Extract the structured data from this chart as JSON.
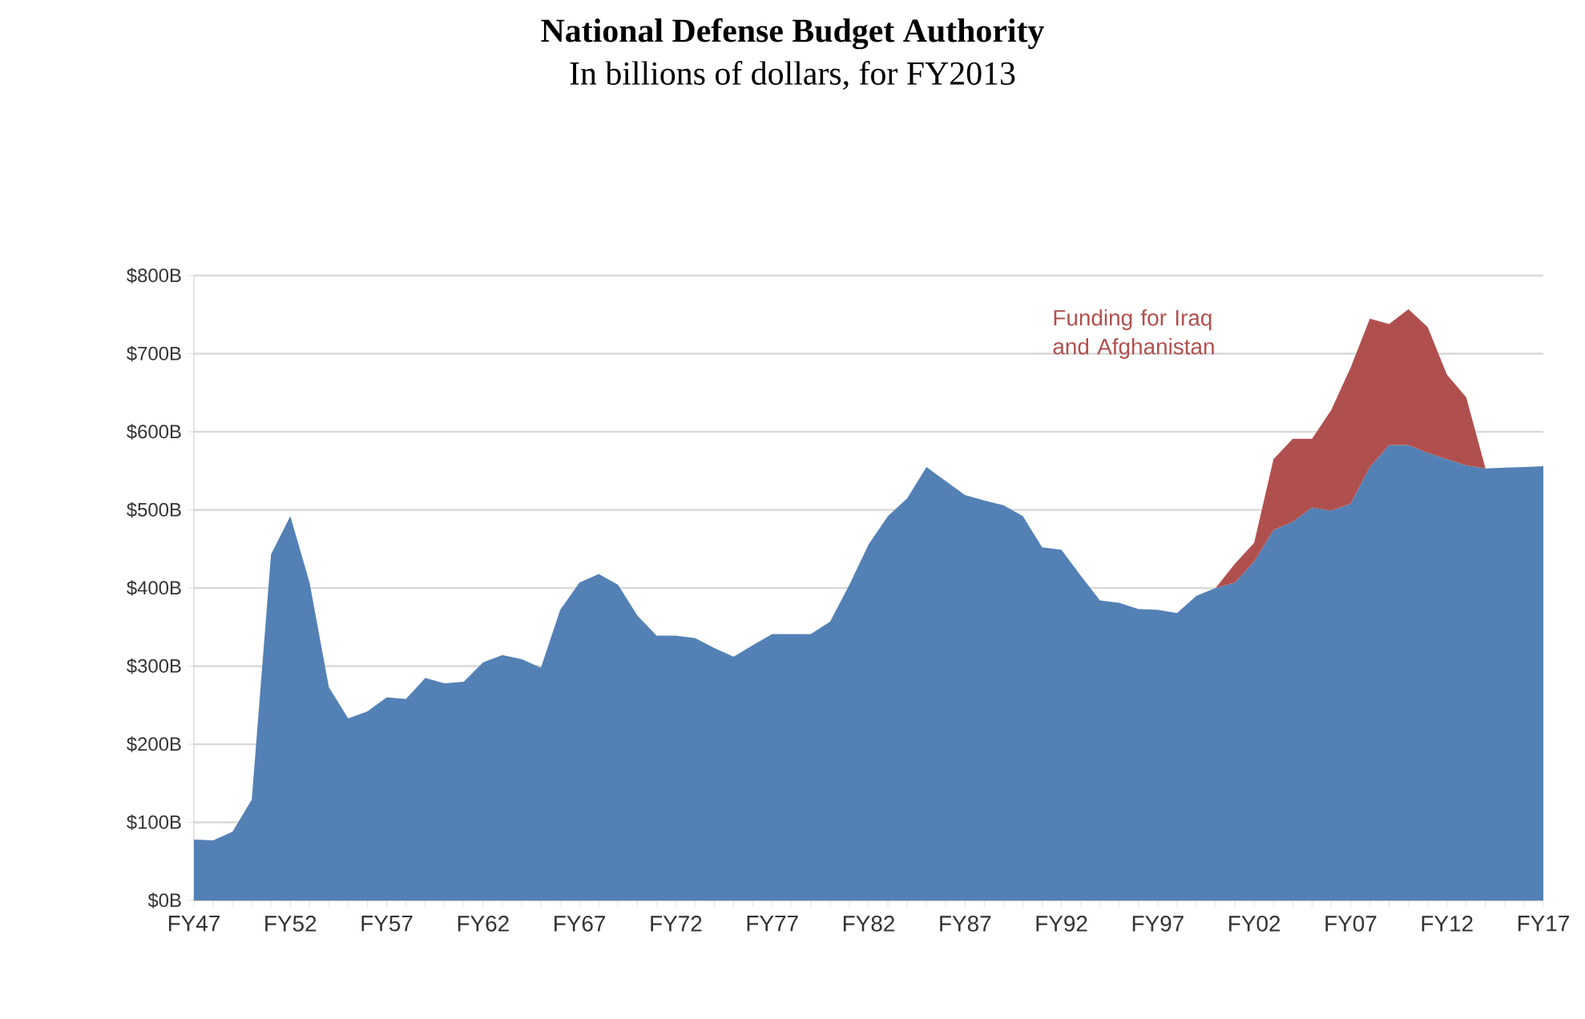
{
  "chart_data": {
    "type": "area",
    "title": "National Defense Budget Authority",
    "subtitle": "In billions of dollars, for FY2013",
    "stacked": true,
    "categories": [
      "FY47",
      null,
      null,
      null,
      null,
      "FY52",
      null,
      null,
      null,
      null,
      "FY57",
      null,
      null,
      null,
      null,
      "FY62",
      null,
      null,
      null,
      null,
      "FY67",
      null,
      null,
      null,
      null,
      "FY72",
      null,
      null,
      null,
      null,
      "FY77",
      null,
      null,
      null,
      null,
      "FY82",
      null,
      null,
      null,
      null,
      "FY87",
      null,
      null,
      null,
      null,
      "FY92",
      null,
      null,
      null,
      null,
      "FY97",
      null,
      null,
      null,
      null,
      "FY02",
      null,
      null,
      null,
      null,
      "FY07",
      null,
      null,
      null,
      null,
      "FY12",
      null,
      null,
      null,
      null,
      "FY17"
    ],
    "series": [
      {
        "color": "#5381b5",
        "values": [
          78,
          77,
          88,
          129,
          443,
          492,
          407,
          273,
          233,
          242,
          260,
          258,
          285,
          278,
          280,
          305,
          314,
          309,
          298,
          372,
          407,
          418,
          404,
          365,
          339,
          339,
          336,
          323,
          312,
          327,
          341,
          341,
          341,
          357,
          404,
          456,
          492,
          515,
          555,
          537,
          519,
          512,
          506,
          492,
          452,
          449,
          416,
          384,
          381,
          373,
          372,
          368,
          390,
          400,
          407,
          434,
          474,
          485,
          503,
          499,
          508,
          555,
          583,
          583,
          573,
          565,
          557,
          553,
          554,
          555,
          556
        ]
      },
      {
        "name": "Funding for Iraq and Afghanistan",
        "color": "#b0504e",
        "values": [
          null,
          null,
          null,
          null,
          null,
          null,
          null,
          null,
          null,
          null,
          null,
          null,
          null,
          null,
          null,
          null,
          null,
          null,
          null,
          null,
          null,
          null,
          null,
          null,
          null,
          null,
          null,
          null,
          null,
          null,
          null,
          null,
          null,
          null,
          null,
          null,
          null,
          null,
          null,
          null,
          null,
          null,
          null,
          null,
          null,
          null,
          null,
          null,
          null,
          null,
          null,
          null,
          null,
          0,
          24,
          24,
          91,
          106,
          88,
          129,
          174,
          190,
          155,
          174,
          161,
          108,
          87,
          0,
          null,
          null,
          null
        ]
      }
    ],
    "ylim": [
      0,
      800
    ],
    "yticks": [
      {
        "value": 0,
        "label": "$0B"
      },
      {
        "value": 100,
        "label": "$100B"
      },
      {
        "value": 200,
        "label": "$200B"
      },
      {
        "value": 300,
        "label": "$300B"
      },
      {
        "value": 400,
        "label": "$400B"
      },
      {
        "value": 500,
        "label": "$500B"
      },
      {
        "value": 600,
        "label": "$600B"
      },
      {
        "value": 700,
        "label": "$700B"
      },
      {
        "value": 800,
        "label": "$800B"
      }
    ],
    "grid": "y"
  }
}
